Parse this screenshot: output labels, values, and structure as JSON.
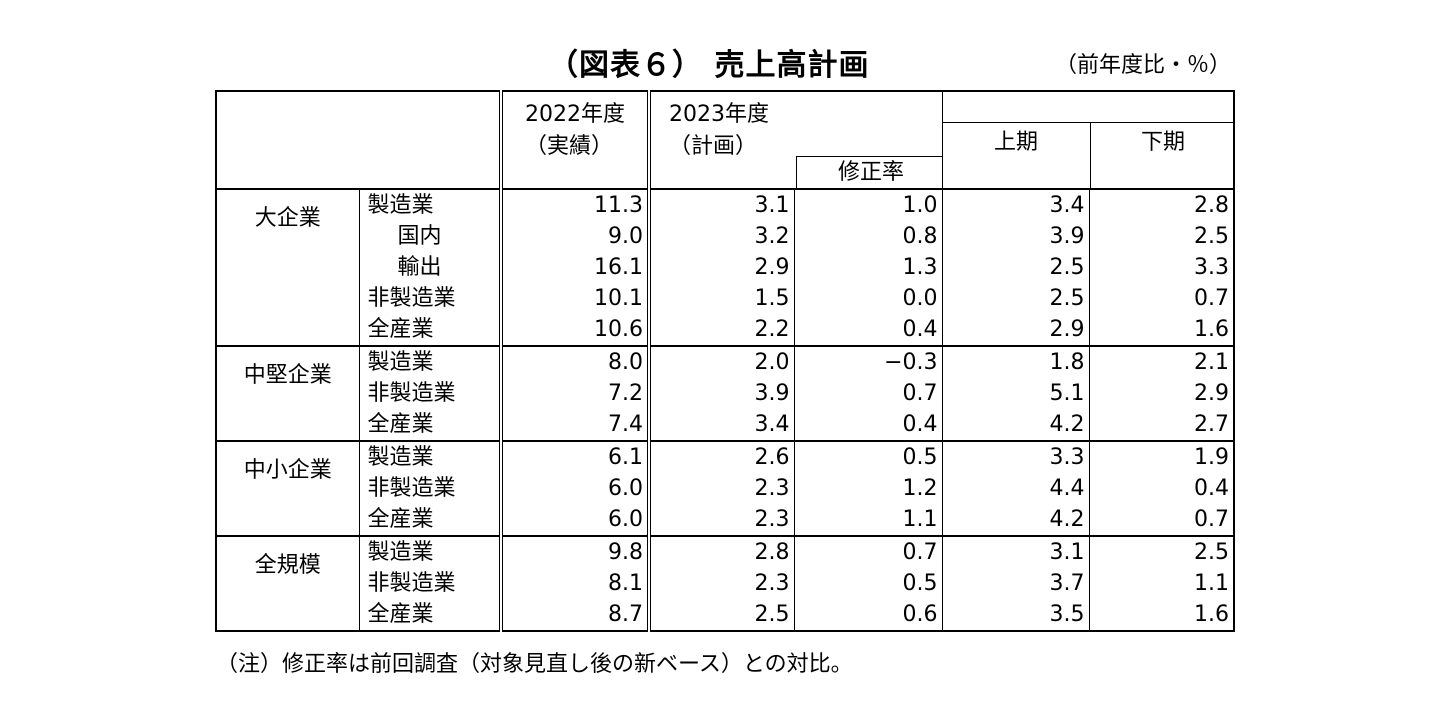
{
  "title": "（図表６） 売上高計画",
  "unit": "（前年度比・％）",
  "note": "（注）修正率は前回調査（対象見直し後の新ベース）との対比。",
  "headers": {
    "fy2022_line1": "2022年度",
    "fy2022_line2": "（実績）",
    "fy2023_line1": "2023年度",
    "fy2023_line2": "（計画）",
    "revision_rate": "修正率",
    "first_half": "上期",
    "second_half": "下期"
  },
  "groups": [
    {
      "name": "大企業",
      "rows": [
        {
          "industry": "製造業",
          "sub": false,
          "fy2022": "11.3",
          "fy2023": "3.1",
          "revision": "1.0",
          "first_half": "3.4",
          "second_half": "2.8"
        },
        {
          "industry": "国内",
          "sub": true,
          "fy2022": "9.0",
          "fy2023": "3.2",
          "revision": "0.8",
          "first_half": "3.9",
          "second_half": "2.5"
        },
        {
          "industry": "輸出",
          "sub": true,
          "fy2022": "16.1",
          "fy2023": "2.9",
          "revision": "1.3",
          "first_half": "2.5",
          "second_half": "3.3"
        },
        {
          "industry": "非製造業",
          "sub": false,
          "fy2022": "10.1",
          "fy2023": "1.5",
          "revision": "0.0",
          "first_half": "2.5",
          "second_half": "0.7"
        },
        {
          "industry": "全産業",
          "sub": false,
          "fy2022": "10.6",
          "fy2023": "2.2",
          "revision": "0.4",
          "first_half": "2.9",
          "second_half": "1.6"
        }
      ]
    },
    {
      "name": "中堅企業",
      "rows": [
        {
          "industry": "製造業",
          "sub": false,
          "fy2022": "8.0",
          "fy2023": "2.0",
          "revision": "−0.3",
          "first_half": "1.8",
          "second_half": "2.1"
        },
        {
          "industry": "非製造業",
          "sub": false,
          "fy2022": "7.2",
          "fy2023": "3.9",
          "revision": "0.7",
          "first_half": "5.1",
          "second_half": "2.9"
        },
        {
          "industry": "全産業",
          "sub": false,
          "fy2022": "7.4",
          "fy2023": "3.4",
          "revision": "0.4",
          "first_half": "4.2",
          "second_half": "2.7"
        }
      ]
    },
    {
      "name": "中小企業",
      "rows": [
        {
          "industry": "製造業",
          "sub": false,
          "fy2022": "6.1",
          "fy2023": "2.6",
          "revision": "0.5",
          "first_half": "3.3",
          "second_half": "1.9"
        },
        {
          "industry": "非製造業",
          "sub": false,
          "fy2022": "6.0",
          "fy2023": "2.3",
          "revision": "1.2",
          "first_half": "4.4",
          "second_half": "0.4"
        },
        {
          "industry": "全産業",
          "sub": false,
          "fy2022": "6.0",
          "fy2023": "2.3",
          "revision": "1.1",
          "first_half": "4.2",
          "second_half": "0.7"
        }
      ]
    },
    {
      "name": "全規模",
      "rows": [
        {
          "industry": "製造業",
          "sub": false,
          "fy2022": "9.8",
          "fy2023": "2.8",
          "revision": "0.7",
          "first_half": "3.1",
          "second_half": "2.5"
        },
        {
          "industry": "非製造業",
          "sub": false,
          "fy2022": "8.1",
          "fy2023": "2.3",
          "revision": "0.5",
          "first_half": "3.7",
          "second_half": "1.1"
        },
        {
          "industry": "全産業",
          "sub": false,
          "fy2022": "8.7",
          "fy2023": "2.5",
          "revision": "0.6",
          "first_half": "3.5",
          "second_half": "1.6"
        }
      ]
    }
  ]
}
